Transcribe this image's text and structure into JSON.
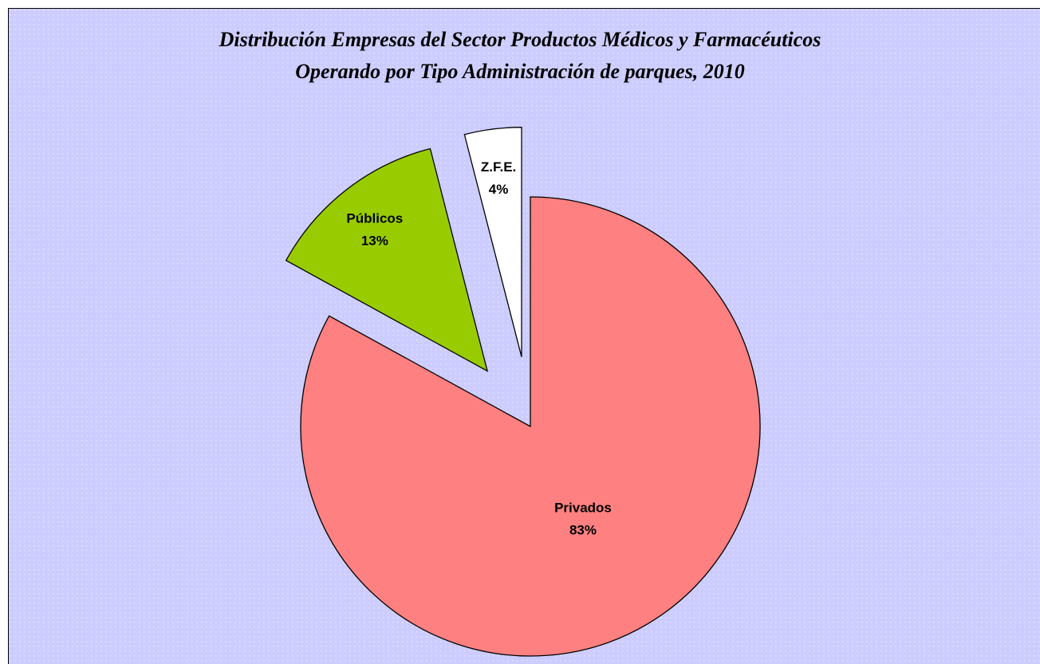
{
  "chart_data": {
    "type": "pie",
    "title": "Distribución Empresas del Sector Productos Médicos y Farmacéuticos",
    "subtitle": "Operando por Tipo Administración de parques, 2010",
    "categories": [
      "Privados",
      "Públicos",
      "Z.F.E."
    ],
    "values": [
      83,
      13,
      4
    ],
    "value_labels": [
      "83%",
      "13%",
      "4%"
    ],
    "colors": [
      "#ff8080",
      "#99cc00",
      "#ffffff"
    ]
  }
}
